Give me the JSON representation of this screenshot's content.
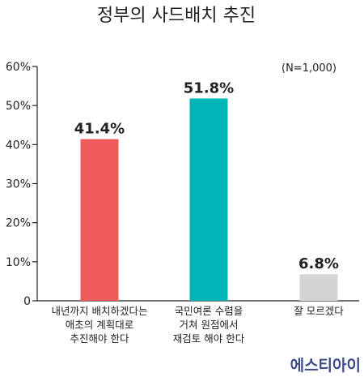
{
  "chart_data": {
    "type": "bar",
    "title": "정부의 사드배치 추진",
    "annotation": "(N=1,000)",
    "categories": [
      [
        "내년까지 배치하겠다는",
        "애초의 계획대로",
        "추진해야 한다"
      ],
      [
        "국민여론 수렴을",
        "거쳐 원점에서",
        "재검토 해야 한다"
      ],
      [
        "잘 모르겠다"
      ]
    ],
    "values": [
      41.4,
      51.8,
      6.8
    ],
    "value_labels": [
      "41.4%",
      "51.8%",
      "6.8%"
    ],
    "bar_colors": [
      "#ef5b5b",
      "#00b5b5",
      "#d4d4d4"
    ],
    "ylim": [
      0,
      60
    ],
    "yticks": [
      0,
      10,
      20,
      30,
      40,
      50,
      60
    ],
    "ytick_labels": [
      "0",
      "10%",
      "20%",
      "30%",
      "40%",
      "50%",
      "60%"
    ],
    "grid": false,
    "source_logo": "에스티아이",
    "colors": {
      "axis": "#222222",
      "text": "#222222",
      "logo": "#3a4a8c"
    }
  }
}
